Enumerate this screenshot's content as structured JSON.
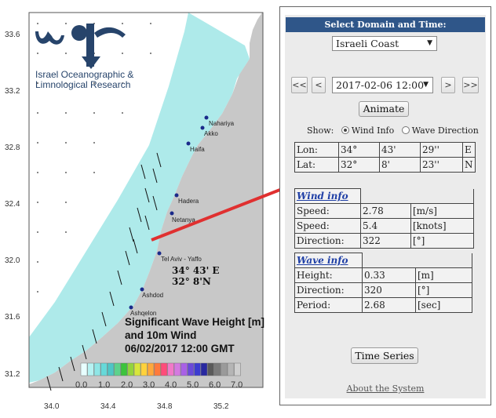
{
  "map": {
    "lat_ticks": [
      "33.6",
      "33.2",
      "32.8",
      "32.4",
      "32.0",
      "31.6",
      "31.2"
    ],
    "lon_ticks": [
      "34.0",
      "34.4",
      "34.8",
      "35.2"
    ],
    "logo_line1": "Israel Oceanographic &",
    "logo_line2": "Limnological Research",
    "cities": [
      {
        "name": "Nahariya"
      },
      {
        "name": "Akko"
      },
      {
        "name": "Haifa"
      },
      {
        "name": "Hadera"
      },
      {
        "name": "Netanya"
      },
      {
        "name": "Tel Aviv - Yaffo"
      },
      {
        "name": "Ashdod"
      },
      {
        "name": "Ashqelon"
      }
    ],
    "point_lon": "34° 43' E",
    "point_lat": "32° 8'N",
    "title_line1": "Significant Wave Height [m]",
    "title_line2": "and 10m Wind",
    "title_line3": "06/02/2017 12:00 GMT",
    "colorbar_labels": [
      "0.0",
      "1.0",
      "2.0",
      "3.0",
      "4.0",
      "5.0",
      "6.0",
      "7.0"
    ],
    "colorbar_colors": [
      "#e8ffff",
      "#b5f2f2",
      "#8fe6e6",
      "#66d9d9",
      "#4fc6c6",
      "#5ed28c",
      "#3cc43c",
      "#93d43c",
      "#d7e63c",
      "#ffd23c",
      "#ffa83c",
      "#ff7a3c",
      "#ff4c7a",
      "#f279c8",
      "#d47ae0",
      "#a960e6",
      "#6a4ad9",
      "#3c3cd0",
      "#2828a0",
      "#5a5a5a",
      "#7a7a7a",
      "#9a9a9a",
      "#b5b5b5",
      "#cfcfcf"
    ],
    "colors": {
      "sea": "#aeeaea",
      "land": "#c8c8c8",
      "pointer_line": "#e03030",
      "city_dot": "#1a2a8a"
    }
  },
  "panel": {
    "header": "Select Domain and Time:",
    "domain": "Israeli Coast",
    "time": "2017-02-06 12:00",
    "btn_first": "<<",
    "btn_prev": "<",
    "btn_next": ">",
    "btn_last": ">>",
    "animate": "Animate",
    "show_label": "Show:",
    "opt_wind": "Wind Info",
    "opt_wave": "Wave Direction",
    "lon": {
      "label": "Lon:",
      "deg": "34°",
      "min": "43'",
      "sec": "29''",
      "hemi": "E"
    },
    "lat": {
      "label": "Lat:",
      "deg": "32°",
      "min": "8'",
      "sec": "23''",
      "hemi": "N"
    },
    "wind_title": "Wind info",
    "wind_rows": [
      {
        "label": "Speed:",
        "value": "2.78",
        "unit": "[m/s]"
      },
      {
        "label": "Speed:",
        "value": "5.4",
        "unit": "[knots]"
      },
      {
        "label": "Direction:",
        "value": "322",
        "unit": "[°]"
      }
    ],
    "wave_title": "Wave info",
    "wave_rows": [
      {
        "label": "Height:",
        "value": "0.33",
        "unit": "[m]"
      },
      {
        "label": "Direction:",
        "value": "320",
        "unit": "[°]"
      },
      {
        "label": "Period:",
        "value": "2.68",
        "unit": "[sec]"
      }
    ],
    "time_series": "Time Series",
    "about": "About the System"
  }
}
